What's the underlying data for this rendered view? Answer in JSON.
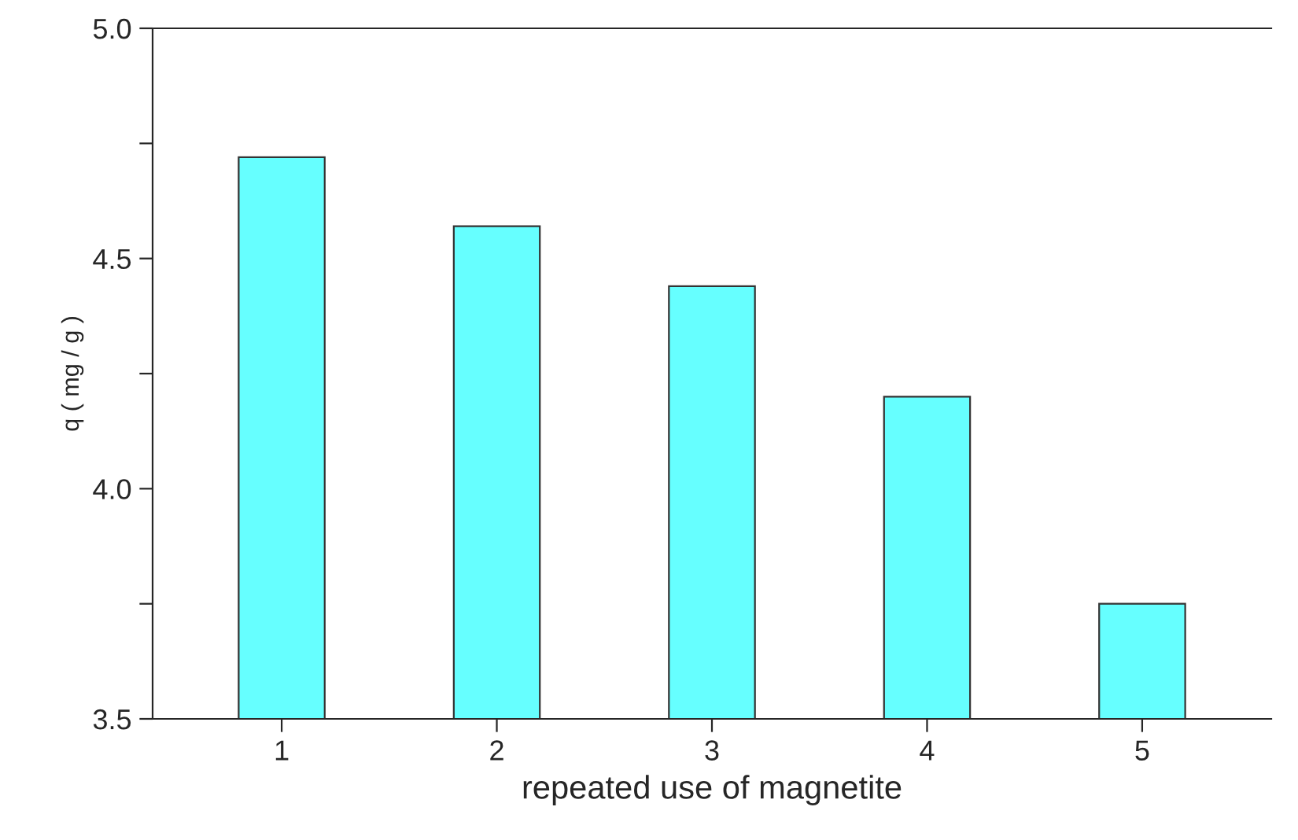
{
  "chart_data": {
    "type": "bar",
    "xlabel": "repeated use of magnetite",
    "ylabel": "q ( mg / g )",
    "categories": [
      "1",
      "2",
      "3",
      "4",
      "5"
    ],
    "values": [
      4.72,
      4.57,
      4.44,
      4.2,
      3.75
    ],
    "color": "#66ffff",
    "ylim": [
      3.5,
      5.0
    ],
    "yticks": [
      {
        "value": 3.5,
        "label": "3.5"
      },
      {
        "value": 3.75,
        "label": null
      },
      {
        "value": 4.0,
        "label": "4.0"
      },
      {
        "value": 4.25,
        "label": null
      },
      {
        "value": 4.5,
        "label": "4.5"
      },
      {
        "value": 4.75,
        "label": null
      },
      {
        "value": 5.0,
        "label": "5.0"
      }
    ],
    "grid": false
  }
}
